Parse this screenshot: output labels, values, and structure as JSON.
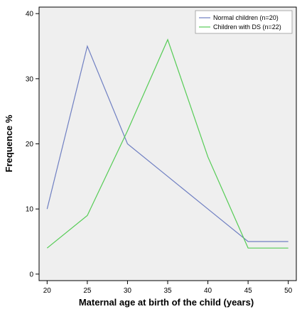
{
  "chart_data": {
    "type": "line",
    "title": "",
    "xlabel": "Maternal age at birth of the child (years)",
    "ylabel": "Frequence %",
    "x": [
      20,
      25,
      30,
      35,
      40,
      45,
      50
    ],
    "xlim": [
      19,
      51
    ],
    "ylim": [
      -1,
      41
    ],
    "xticks": [
      "20",
      "25",
      "30",
      "35",
      "40",
      "45",
      "50"
    ],
    "yticks": [
      "0",
      "10",
      "20",
      "30",
      "40"
    ],
    "grid": false,
    "legend_position": "top-right",
    "background_color": "#efefef",
    "series": [
      {
        "name": "Normal children (n=20)",
        "color": "#6f7fc2",
        "values": [
          10,
          35,
          20,
          15,
          10,
          5,
          5
        ]
      },
      {
        "name": "Children with DS (n=22)",
        "color": "#55cc55",
        "values": [
          4,
          9,
          22,
          36,
          18,
          4,
          4
        ]
      }
    ]
  }
}
